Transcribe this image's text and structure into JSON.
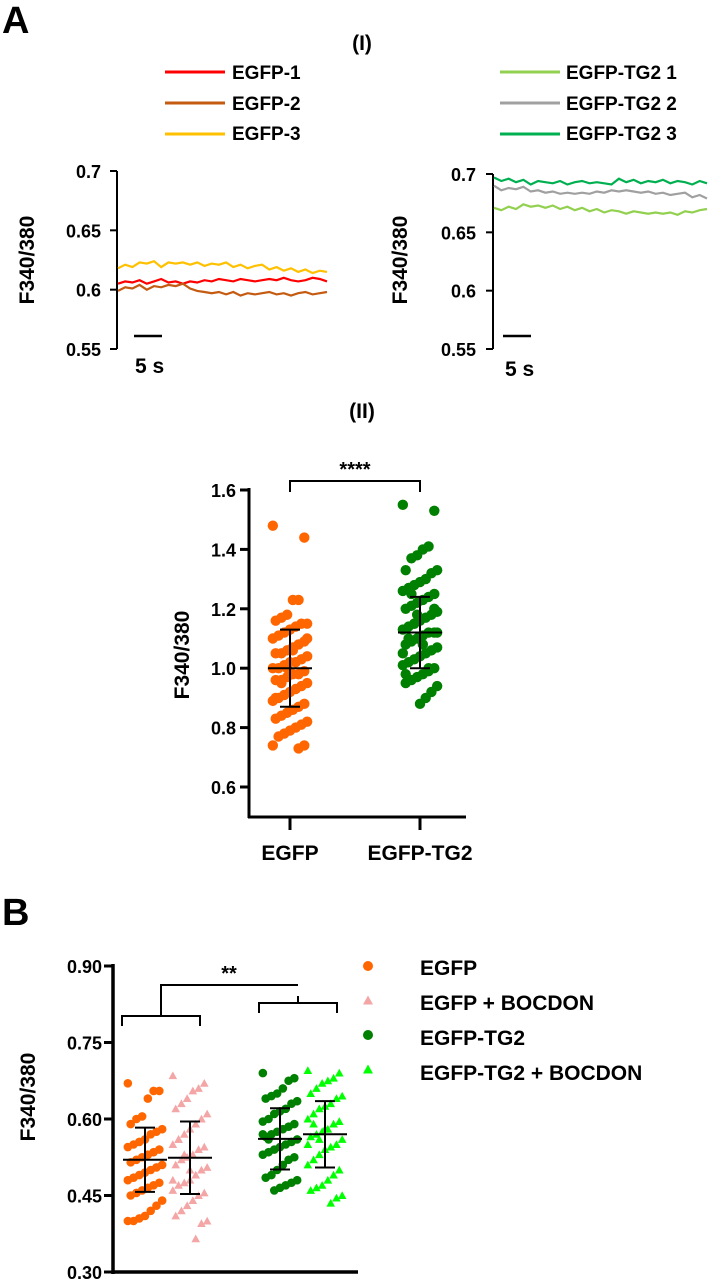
{
  "panels": {
    "a": "A",
    "a_i": "(I)",
    "a_ii": "(II)",
    "b": "B"
  },
  "chart_data": [
    {
      "id": "trace_egfp",
      "type": "line",
      "ylabel": "F340/380",
      "ylim": [
        0.55,
        0.7
      ],
      "yticks": [
        "0.7",
        "0.65",
        "0.6",
        "0.55"
      ],
      "ytick_values": [
        0.7,
        0.65,
        0.6,
        0.55
      ],
      "scale_bar": "5 s",
      "legend_position": "top",
      "series": [
        {
          "name": "EGFP-1",
          "color": "#ff0000",
          "values": [
            0.605,
            0.607,
            0.606,
            0.608,
            0.605,
            0.607,
            0.609,
            0.606,
            0.607,
            0.605,
            0.607,
            0.606,
            0.608,
            0.607,
            0.609,
            0.608,
            0.607,
            0.609,
            0.608,
            0.607,
            0.608,
            0.609,
            0.608,
            0.61,
            0.608,
            0.607,
            0.608,
            0.61,
            0.609,
            0.607
          ]
        },
        {
          "name": "EGFP-2",
          "color": "#c55a11",
          "values": [
            0.599,
            0.602,
            0.601,
            0.604,
            0.6,
            0.603,
            0.602,
            0.604,
            0.603,
            0.605,
            0.601,
            0.599,
            0.598,
            0.597,
            0.598,
            0.596,
            0.598,
            0.595,
            0.597,
            0.596,
            0.597,
            0.598,
            0.596,
            0.597,
            0.595,
            0.597,
            0.598,
            0.596,
            0.597,
            0.598
          ]
        },
        {
          "name": "EGFP-3",
          "color": "#ffc000",
          "values": [
            0.618,
            0.621,
            0.619,
            0.623,
            0.622,
            0.624,
            0.619,
            0.623,
            0.622,
            0.623,
            0.621,
            0.623,
            0.62,
            0.622,
            0.621,
            0.623,
            0.619,
            0.621,
            0.618,
            0.62,
            0.621,
            0.617,
            0.619,
            0.616,
            0.618,
            0.615,
            0.617,
            0.614,
            0.616,
            0.615
          ]
        }
      ]
    },
    {
      "id": "trace_tg2",
      "type": "line",
      "ylabel": "F340/380",
      "ylim": [
        0.55,
        0.7
      ],
      "yticks": [
        "0.7",
        "0.65",
        "0.6",
        "0.55"
      ],
      "ytick_values": [
        0.7,
        0.65,
        0.6,
        0.55
      ],
      "scale_bar": "5 s",
      "legend_position": "top",
      "series": [
        {
          "name": "EGFP-TG2 1",
          "color": "#92d050",
          "values": [
            0.671,
            0.669,
            0.672,
            0.67,
            0.674,
            0.672,
            0.673,
            0.671,
            0.673,
            0.67,
            0.672,
            0.669,
            0.671,
            0.668,
            0.67,
            0.667,
            0.669,
            0.668,
            0.666,
            0.668,
            0.667,
            0.666,
            0.667,
            0.666,
            0.667,
            0.665,
            0.668,
            0.667,
            0.669,
            0.67
          ]
        },
        {
          "name": "EGFP-TG2 2",
          "color": "#a0a0a0",
          "values": [
            0.69,
            0.686,
            0.688,
            0.687,
            0.689,
            0.685,
            0.686,
            0.684,
            0.685,
            0.683,
            0.684,
            0.683,
            0.684,
            0.683,
            0.685,
            0.684,
            0.686,
            0.685,
            0.686,
            0.685,
            0.684,
            0.685,
            0.683,
            0.684,
            0.682,
            0.683,
            0.684,
            0.68,
            0.682,
            0.679
          ]
        },
        {
          "name": "EGFP-TG2 3",
          "color": "#00b050",
          "values": [
            0.697,
            0.694,
            0.696,
            0.693,
            0.695,
            0.691,
            0.694,
            0.693,
            0.692,
            0.694,
            0.691,
            0.693,
            0.694,
            0.692,
            0.693,
            0.692,
            0.691,
            0.696,
            0.693,
            0.695,
            0.692,
            0.694,
            0.693,
            0.695,
            0.692,
            0.694,
            0.693,
            0.691,
            0.694,
            0.692
          ]
        }
      ]
    },
    {
      "id": "scatter_ii",
      "type": "scatter",
      "ylabel": "F340/380",
      "ylim": [
        0.5,
        1.6
      ],
      "yticks": [
        "1.6",
        "1.4",
        "1.2",
        "1.0",
        "0.8",
        "0.6"
      ],
      "ytick_values": [
        1.6,
        1.4,
        1.2,
        1.0,
        0.8,
        0.6
      ],
      "categories": [
        "EGFP",
        "EGFP-TG2"
      ],
      "significance": "****",
      "series": [
        {
          "category": "EGFP",
          "color": "#ff6600",
          "marker": "circle",
          "mean": 1.0,
          "sd_low": 0.87,
          "sd_high": 1.13,
          "values": [
            1.48,
            1.44,
            1.23,
            1.23,
            1.18,
            1.17,
            1.16,
            1.15,
            1.15,
            1.14,
            1.13,
            1.12,
            1.11,
            1.1,
            1.09,
            1.08,
            1.07,
            1.06,
            1.05,
            1.05,
            1.04,
            1.03,
            1.02,
            1.02,
            1.01,
            1.0,
            1.0,
            0.99,
            0.98,
            0.98,
            0.97,
            0.96,
            0.96,
            0.95,
            0.94,
            0.93,
            0.92,
            0.91,
            0.9,
            0.89,
            0.88,
            0.87,
            0.86,
            0.85,
            0.84,
            0.83,
            0.82,
            0.81,
            0.8,
            0.79,
            0.78,
            0.77,
            0.74,
            0.74,
            0.73,
            1.06,
            1.0,
            0.95,
            0.9,
            1.1
          ]
        },
        {
          "category": "EGFP-TG2",
          "color": "#008000",
          "marker": "circle",
          "mean": 1.12,
          "sd_low": 1.0,
          "sd_high": 1.24,
          "values": [
            1.55,
            1.53,
            1.41,
            1.4,
            1.38,
            1.37,
            1.33,
            1.33,
            1.32,
            1.3,
            1.29,
            1.28,
            1.27,
            1.26,
            1.25,
            1.24,
            1.23,
            1.22,
            1.21,
            1.2,
            1.19,
            1.18,
            1.17,
            1.16,
            1.15,
            1.14,
            1.13,
            1.12,
            1.12,
            1.11,
            1.1,
            1.09,
            1.08,
            1.07,
            1.06,
            1.05,
            1.04,
            1.03,
            1.02,
            1.01,
            1.0,
            0.99,
            0.98,
            0.97,
            0.96,
            0.95,
            0.94,
            0.92,
            0.9,
            0.88,
            1.15,
            1.1,
            1.05,
            1.2,
            1.0,
            1.08,
            1.18,
            1.25,
            0.98,
            1.12
          ]
        }
      ]
    },
    {
      "id": "scatter_b",
      "type": "scatter",
      "ylabel": "F340/380",
      "ylim": [
        0.3,
        0.9
      ],
      "yticks": [
        "0.90",
        "0.75",
        "0.60",
        "0.45",
        "0.30"
      ],
      "ytick_values": [
        0.9,
        0.75,
        0.6,
        0.45,
        0.3
      ],
      "significance": "**",
      "legend_position": "right",
      "series": [
        {
          "name": "EGFP",
          "color": "#ff6600",
          "marker": "circle",
          "mean": 0.52,
          "sd_low": 0.457,
          "sd_high": 0.583,
          "values": [
            0.67,
            0.655,
            0.655,
            0.64,
            0.605,
            0.6,
            0.59,
            0.58,
            0.575,
            0.57,
            0.56,
            0.555,
            0.55,
            0.545,
            0.54,
            0.535,
            0.53,
            0.525,
            0.52,
            0.515,
            0.51,
            0.505,
            0.5,
            0.495,
            0.49,
            0.485,
            0.48,
            0.475,
            0.47,
            0.465,
            0.46,
            0.455,
            0.45,
            0.44,
            0.43,
            0.42,
            0.41,
            0.405,
            0.4,
            0.4
          ]
        },
        {
          "name": "EGFP + BOCDON",
          "color": "#f4a6a6",
          "marker": "triangle",
          "mean": 0.524,
          "sd_low": 0.453,
          "sd_high": 0.595,
          "values": [
            0.685,
            0.67,
            0.66,
            0.655,
            0.64,
            0.63,
            0.62,
            0.61,
            0.6,
            0.59,
            0.58,
            0.57,
            0.56,
            0.55,
            0.545,
            0.54,
            0.53,
            0.525,
            0.52,
            0.51,
            0.505,
            0.5,
            0.49,
            0.48,
            0.475,
            0.47,
            0.46,
            0.455,
            0.45,
            0.44,
            0.43,
            0.42,
            0.41,
            0.4,
            0.395,
            0.365,
            0.5,
            0.53,
            0.56,
            0.48
          ]
        },
        {
          "name": "EGFP-TG2",
          "color": "#008000",
          "marker": "circle",
          "mean": 0.561,
          "sd_low": 0.501,
          "sd_high": 0.621,
          "values": [
            0.69,
            0.68,
            0.675,
            0.66,
            0.65,
            0.645,
            0.64,
            0.635,
            0.63,
            0.62,
            0.615,
            0.61,
            0.6,
            0.595,
            0.59,
            0.585,
            0.58,
            0.575,
            0.57,
            0.565,
            0.56,
            0.555,
            0.55,
            0.545,
            0.54,
            0.535,
            0.53,
            0.525,
            0.52,
            0.51,
            0.5,
            0.49,
            0.485,
            0.48,
            0.475,
            0.47,
            0.465,
            0.46,
            0.56,
            0.57
          ]
        },
        {
          "name": "EGFP-TG2 + BOCDON",
          "color": "#00ff00",
          "marker": "triangle",
          "mean": 0.57,
          "sd_low": 0.505,
          "sd_high": 0.635,
          "values": [
            0.695,
            0.69,
            0.68,
            0.675,
            0.67,
            0.66,
            0.65,
            0.645,
            0.64,
            0.63,
            0.625,
            0.62,
            0.61,
            0.6,
            0.595,
            0.59,
            0.58,
            0.575,
            0.57,
            0.565,
            0.56,
            0.55,
            0.545,
            0.54,
            0.53,
            0.52,
            0.51,
            0.5,
            0.49,
            0.48,
            0.47,
            0.465,
            0.46,
            0.45,
            0.445,
            0.435,
            0.58,
            0.56,
            0.59,
            0.55
          ]
        }
      ]
    }
  ]
}
